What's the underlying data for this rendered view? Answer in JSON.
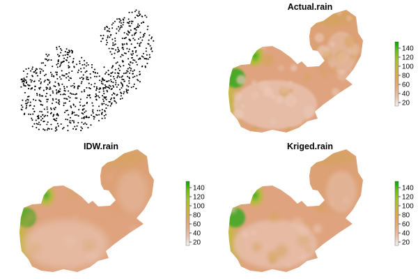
{
  "panels": [
    {
      "id": "points",
      "title": ""
    },
    {
      "id": "actual",
      "title": "Actual.rain",
      "variant": 0
    },
    {
      "id": "idw",
      "title": "IDW.rain",
      "variant": 1
    },
    {
      "id": "kriged",
      "title": "Kriged.rain",
      "variant": 2
    }
  ],
  "legend": {
    "ticks": [
      "140",
      "120",
      "100",
      "80",
      "60",
      "40",
      "20"
    ],
    "colors": [
      "#f2f2f2",
      "#e8c3b0",
      "#e3ad83",
      "#d9a85f",
      "#c6b43f",
      "#a5c22a",
      "#6fbf14",
      "#00a600"
    ]
  },
  "colors": {
    "low": "#e8c4b3",
    "mid": "#dfa47f",
    "high": "#00a600",
    "points": "#000000"
  }
}
